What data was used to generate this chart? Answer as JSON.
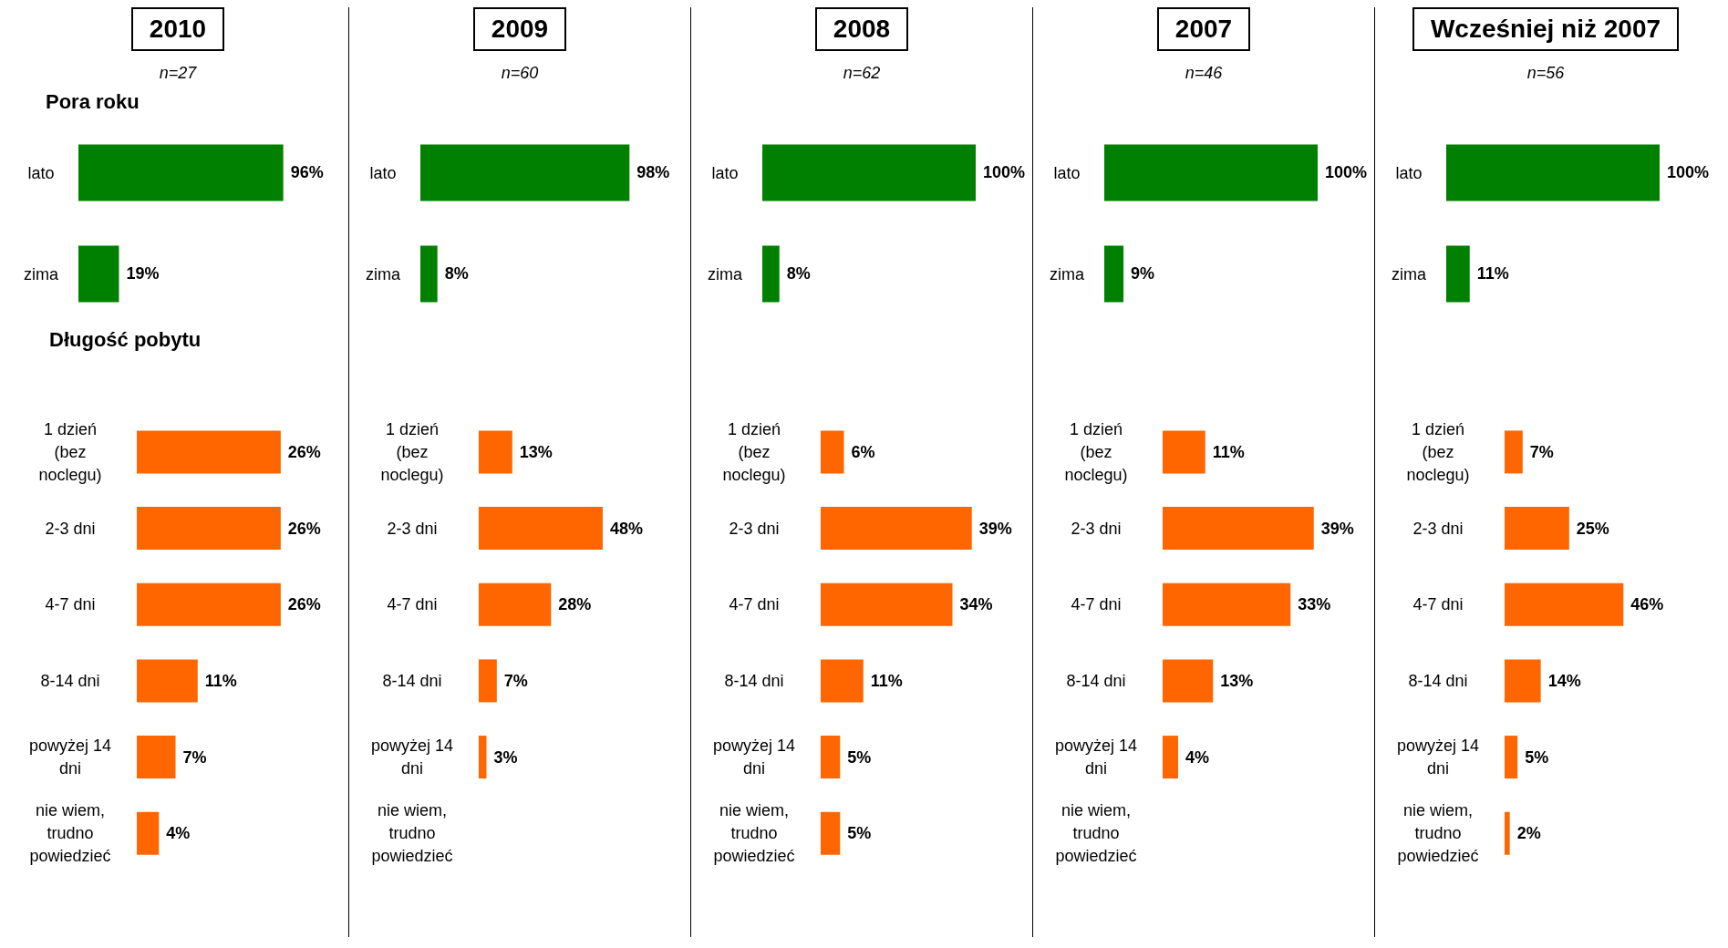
{
  "chart_data": [
    {
      "type": "bar",
      "orientation": "horizontal",
      "title": "2010",
      "subtitle": "n=27",
      "annotations": [
        "Pora roku"
      ],
      "categories": [
        "lato",
        "zima"
      ],
      "values": [
        96,
        19
      ],
      "value_labels": [
        "96%",
        "19%"
      ],
      "color": "#008000",
      "tick_labels": "y"
    },
    {
      "type": "bar",
      "orientation": "horizontal",
      "annotations": [
        "Długość pobytu"
      ],
      "categories": [
        "1 dzień (bez noclegu)",
        "2-3 dni",
        "4-7 dni",
        "8-14 dni",
        "powyżej 14 dni",
        "nie wiem, trudno powiedzieć"
      ],
      "values": [
        26,
        26,
        26,
        11,
        7,
        4
      ],
      "value_labels": [
        "26%",
        "26%",
        "26%",
        "11%",
        "7%",
        "4%"
      ],
      "color": "#ff6600",
      "tick_labels": "y"
    },
    {
      "type": "bar",
      "orientation": "horizontal",
      "title": "2009",
      "subtitle": "n=60",
      "categories": [
        "lato",
        "zima"
      ],
      "values": [
        98,
        8
      ],
      "value_labels": [
        "98%",
        "8%"
      ],
      "color": "#008000",
      "tick_labels": "y"
    },
    {
      "type": "bar",
      "orientation": "horizontal",
      "categories": [
        "1 dzień (bez noclegu)",
        "2-3 dni",
        "4-7 dni",
        "8-14 dni",
        "powyżej 14 dni",
        "nie wiem, trudno powiedzieć"
      ],
      "values": [
        13,
        48,
        28,
        7,
        3,
        null
      ],
      "value_labels": [
        "13%",
        "48%",
        "28%",
        "7%",
        "3%",
        null
      ],
      "color": "#ff6600",
      "tick_labels": "y"
    },
    {
      "type": "bar",
      "orientation": "horizontal",
      "title": "2008",
      "subtitle": "n=62",
      "categories": [
        "lato",
        "zima"
      ],
      "values": [
        100,
        8
      ],
      "value_labels": [
        "100%",
        "8%"
      ],
      "color": "#008000",
      "tick_labels": "y"
    },
    {
      "type": "bar",
      "orientation": "horizontal",
      "categories": [
        "1 dzień (bez noclegu)",
        "2-3 dni",
        "4-7 dni",
        "8-14 dni",
        "powyżej 14 dni",
        "nie wiem, trudno powiedzieć"
      ],
      "values": [
        6,
        39,
        34,
        11,
        5,
        5
      ],
      "value_labels": [
        "6%",
        "39%",
        "34%",
        "11%",
        "5%",
        "5%"
      ],
      "color": "#ff6600",
      "tick_labels": "y"
    },
    {
      "type": "bar",
      "orientation": "horizontal",
      "title": "2007",
      "subtitle": "n=46",
      "categories": [
        "lato",
        "zima"
      ],
      "values": [
        100,
        9
      ],
      "value_labels": [
        "100%",
        "9%"
      ],
      "color": "#008000",
      "tick_labels": "y"
    },
    {
      "type": "bar",
      "orientation": "horizontal",
      "categories": [
        "1 dzień (bez noclegu)",
        "2-3 dni",
        "4-7 dni",
        "8-14 dni",
        "powyżej 14 dni",
        "nie wiem, trudno powiedzieć"
      ],
      "values": [
        11,
        39,
        33,
        13,
        4,
        null
      ],
      "value_labels": [
        "11%",
        "39%",
        "33%",
        "13%",
        "4%",
        null
      ],
      "color": "#ff6600",
      "tick_labels": "y"
    },
    {
      "type": "bar",
      "orientation": "horizontal",
      "title": "Wcześniej niż 2007",
      "subtitle": "n=56",
      "categories": [
        "lato",
        "zima"
      ],
      "values": [
        100,
        11
      ],
      "value_labels": [
        "100%",
        "11%"
      ],
      "color": "#008000",
      "tick_labels": "y"
    },
    {
      "type": "bar",
      "orientation": "horizontal",
      "categories": [
        "1 dzień (bez noclegu)",
        "2-3 dni",
        "4-7 dni",
        "8-14 dni",
        "powyżej 14 dni",
        "nie wiem, trudno powiedzieć"
      ],
      "values": [
        7,
        25,
        46,
        14,
        5,
        2
      ],
      "value_labels": [
        "7%",
        "25%",
        "46%",
        "14%",
        "5%",
        "2%"
      ],
      "color": "#ff6600",
      "tick_labels": "y"
    }
  ]
}
